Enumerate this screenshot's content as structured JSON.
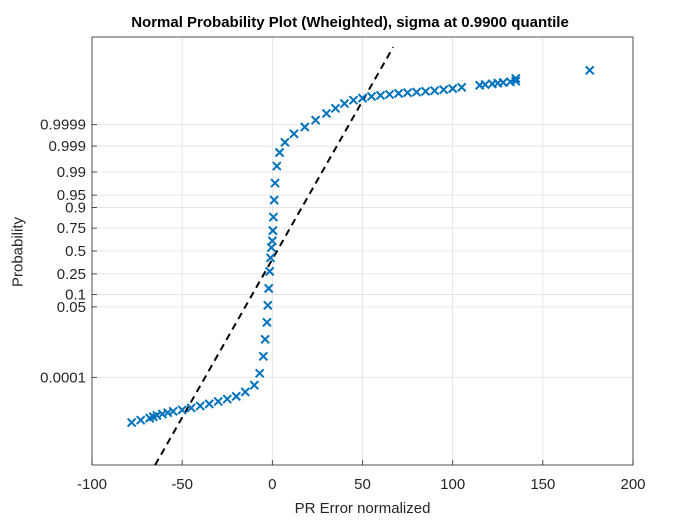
{
  "chart_data": {
    "type": "scatter",
    "title": "Normal Probability Plot (Wheighted), sigma at 0.9900 quantile",
    "xlabel": "PR Error normalized",
    "ylabel": "Probability",
    "xlim": [
      -100,
      200
    ],
    "x_ticks": [
      -100,
      -50,
      0,
      50,
      100,
      150,
      200
    ],
    "y_tick_labels": [
      "0.0001",
      "0.05",
      "0.1",
      "0.25",
      "0.5",
      "0.75",
      "0.9",
      "0.95",
      "0.99",
      "0.999",
      "0.9999"
    ],
    "y_ticks_z": [
      -3.719,
      -1.645,
      -1.282,
      -0.674,
      0,
      0.674,
      1.282,
      1.645,
      2.326,
      3.09,
      3.719
    ],
    "ylim_z": [
      -6.3,
      6.3
    ],
    "grid": true,
    "marker": "x",
    "colors": {
      "points": "#0072bd",
      "fit_line": "#000000",
      "grid": "#e0e0e0",
      "axes": "#262626"
    },
    "fit_line": {
      "style": "dashed",
      "x": [
        -65,
        67
      ],
      "z": [
        -6.3,
        6.0
      ]
    },
    "series": [
      {
        "values": [
          [
            -78,
            -5.05
          ],
          [
            -73,
            -4.98
          ],
          [
            -68,
            -4.92
          ],
          [
            -66,
            -4.88
          ],
          [
            -64,
            -4.84
          ],
          [
            -61,
            -4.8
          ],
          [
            -58,
            -4.76
          ],
          [
            -55,
            -4.72
          ],
          [
            -50,
            -4.68
          ],
          [
            -45,
            -4.62
          ],
          [
            -40,
            -4.56
          ],
          [
            -35,
            -4.5
          ],
          [
            -30,
            -4.43
          ],
          [
            -25,
            -4.36
          ],
          [
            -20,
            -4.28
          ],
          [
            -15,
            -4.15
          ],
          [
            -10,
            -3.95
          ],
          [
            -7,
            -3.6
          ],
          [
            -5,
            -3.1
          ],
          [
            -4,
            -2.6
          ],
          [
            -3,
            -2.1
          ],
          [
            -2.5,
            -1.6
          ],
          [
            -2,
            -1.1
          ],
          [
            -1.5,
            -0.6
          ],
          [
            -1,
            -0.2
          ],
          [
            -0.5,
            0.1
          ],
          [
            0,
            0.3
          ],
          [
            0.3,
            0.6
          ],
          [
            0.6,
            1.0
          ],
          [
            1,
            1.5
          ],
          [
            1.5,
            2.0
          ],
          [
            2.5,
            2.5
          ],
          [
            4,
            2.9
          ],
          [
            7,
            3.2
          ],
          [
            12,
            3.45
          ],
          [
            18,
            3.65
          ],
          [
            24,
            3.85
          ],
          [
            30,
            4.05
          ],
          [
            35,
            4.2
          ],
          [
            40,
            4.34
          ],
          [
            45,
            4.44
          ],
          [
            50,
            4.5
          ],
          [
            55,
            4.55
          ],
          [
            60,
            4.58
          ],
          [
            65,
            4.61
          ],
          [
            70,
            4.64
          ],
          [
            75,
            4.66
          ],
          [
            80,
            4.68
          ],
          [
            85,
            4.7
          ],
          [
            90,
            4.72
          ],
          [
            95,
            4.75
          ],
          [
            100,
            4.78
          ],
          [
            105,
            4.82
          ],
          [
            115,
            4.88
          ],
          [
            118,
            4.9
          ],
          [
            122,
            4.92
          ],
          [
            125,
            4.94
          ],
          [
            128,
            4.96
          ],
          [
            132,
            4.98
          ],
          [
            135,
            5.0
          ],
          [
            135,
            5.08
          ],
          [
            176,
            5.32
          ]
        ]
      }
    ]
  }
}
